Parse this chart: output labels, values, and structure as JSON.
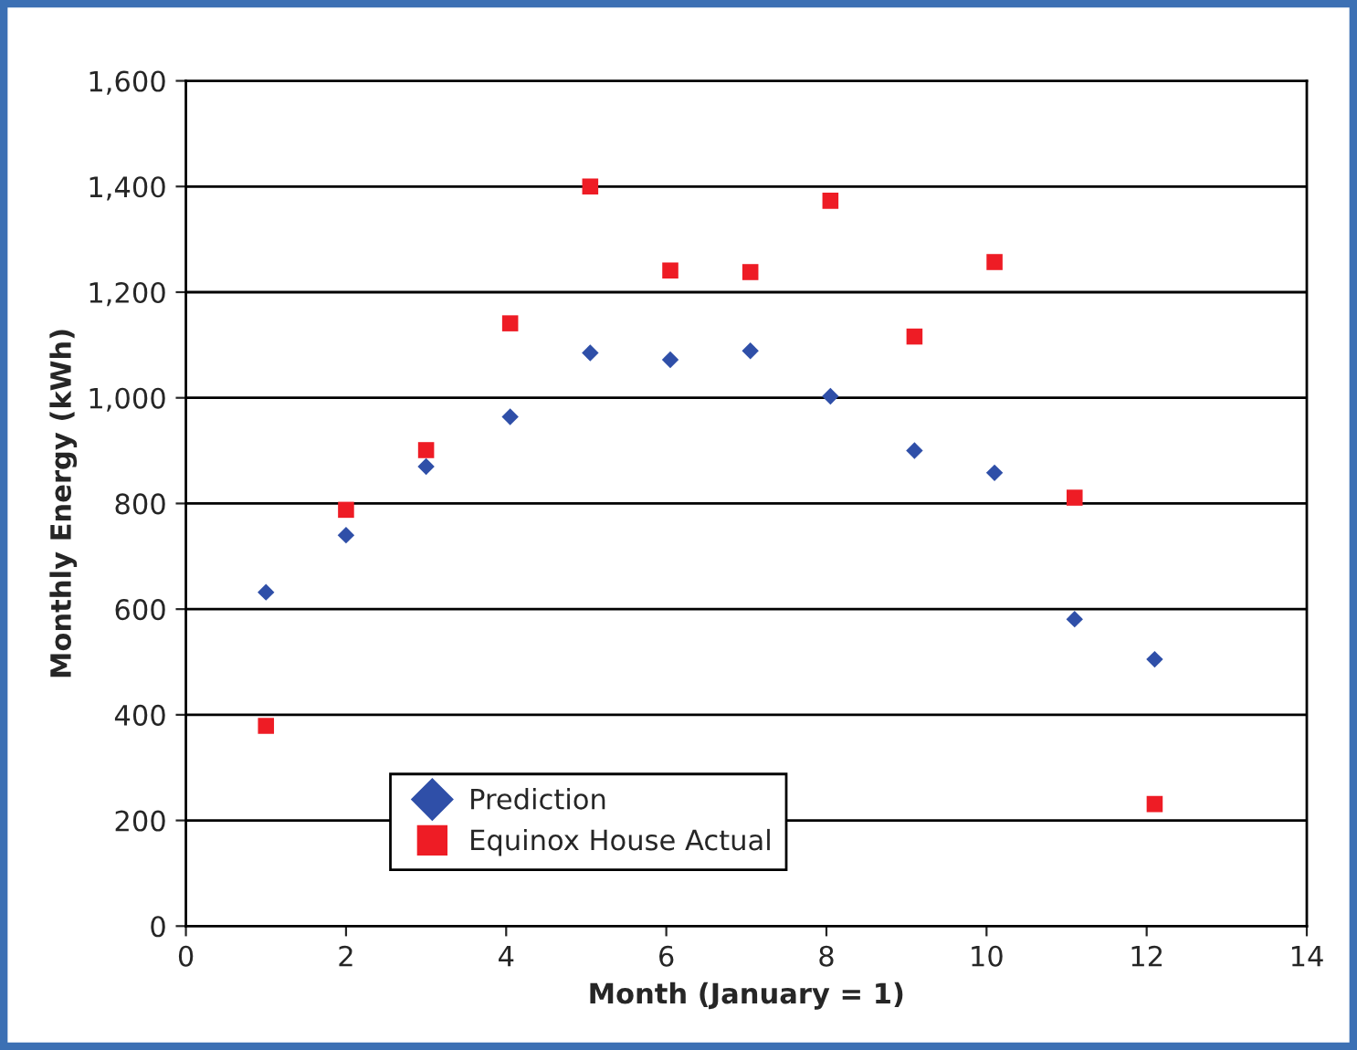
{
  "chart_data": {
    "type": "scatter",
    "xlabel": "Month (January = 1)",
    "ylabel": "Monthly Energy (kWh)",
    "x": [
      1.0,
      2.0,
      3.0,
      4.05,
      5.05,
      6.05,
      7.05,
      8.05,
      9.1,
      10.1,
      11.1,
      12.1
    ],
    "series": [
      {
        "name": "Prediction",
        "color": "#2f4fa8",
        "marker": "diamond",
        "values": [
          632,
          740,
          870,
          964,
          1085,
          1072,
          1089,
          1003,
          900,
          858,
          581,
          505
        ]
      },
      {
        "name": "Equinox House Actual",
        "color": "#ee1c25",
        "marker": "square",
        "values": [
          379,
          788,
          901,
          1141,
          1400,
          1241,
          1238,
          1373,
          1116,
          1257,
          811,
          231
        ]
      }
    ],
    "xlim": [
      0,
      14
    ],
    "xticks": [
      0,
      2,
      4,
      6,
      8,
      10,
      12,
      14
    ],
    "ylim": [
      0,
      1600
    ],
    "yticks": [
      0,
      {
        "value": 200,
        "label": "200"
      },
      {
        "value": 400,
        "label": "400"
      },
      {
        "value": 600,
        "label": "600"
      },
      {
        "value": 800,
        "label": "800"
      },
      {
        "value": 1000,
        "label": "1,000"
      },
      {
        "value": 1200,
        "label": "1,200"
      },
      {
        "value": 1400,
        "label": "1,400"
      },
      {
        "value": 1600,
        "label": "1,600"
      }
    ],
    "grid": "y",
    "legend": "bottom left"
  }
}
